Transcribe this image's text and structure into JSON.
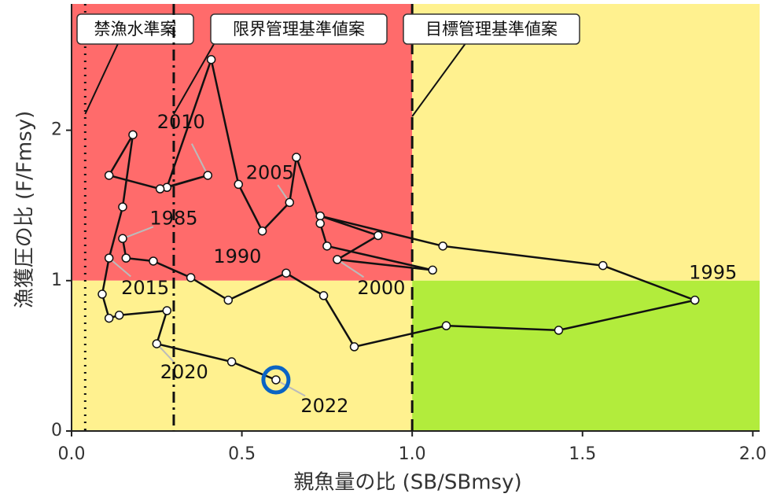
{
  "chart_data": {
    "type": "scatter",
    "x_label": "親魚量の比 (SB/SBmsy)",
    "y_label": "漁獲圧の比 (F/Fmsy)",
    "x": [
      0.15,
      0.16,
      0.24,
      0.35,
      0.46,
      0.63,
      0.74,
      0.83,
      1.1,
      1.43,
      1.83,
      1.56,
      1.09,
      0.73,
      0.9,
      0.78,
      1.06,
      0.75,
      0.73,
      0.66,
      0.64,
      0.56,
      0.49,
      0.41,
      0.28,
      0.4,
      0.26,
      0.11,
      0.18,
      0.15,
      0.11,
      0.09,
      0.11,
      0.14,
      0.28,
      0.25,
      0.47,
      0.6
    ],
    "values": [
      1.28,
      1.15,
      1.13,
      1.02,
      0.87,
      1.05,
      0.9,
      0.56,
      0.7,
      0.67,
      0.87,
      1.1,
      1.23,
      1.43,
      1.3,
      1.14,
      1.07,
      1.23,
      1.38,
      1.82,
      1.52,
      1.33,
      1.64,
      2.47,
      1.62,
      1.7,
      1.61,
      1.7,
      1.97,
      1.49,
      1.15,
      0.91,
      0.75,
      0.77,
      0.8,
      0.58,
      0.46,
      0.34
    ],
    "point_labels": [
      "1985",
      null,
      null,
      null,
      null,
      "1990",
      null,
      null,
      null,
      null,
      "1995",
      null,
      null,
      null,
      null,
      "2000",
      null,
      null,
      null,
      null,
      "2005",
      null,
      null,
      null,
      null,
      "2010",
      null,
      null,
      null,
      null,
      "2015",
      null,
      null,
      null,
      null,
      "2020",
      null,
      "2022"
    ],
    "color": "#111111",
    "xlim": [
      0,
      2.02
    ],
    "ylim": [
      0,
      2.84
    ],
    "xticks": [
      {
        "value": 0,
        "label": "0.0"
      },
      {
        "value": 0.5,
        "label": "0.5"
      },
      {
        "value": 1,
        "label": "1.0"
      },
      {
        "value": 1.5,
        "label": "1.5"
      },
      {
        "value": 2,
        "label": "2.0"
      }
    ],
    "yticks": [
      0,
      1,
      2
    ],
    "quadrant_split": [
      1,
      1
    ],
    "quadrant_colors": {
      "upper_left": "#ff6b6b",
      "upper_right": "#fff18f",
      "lower_left": "#fff18f",
      "lower_right": "#b2ec3c"
    },
    "reference_lines": [
      {
        "label": "禁漁水準案",
        "x": 0.04,
        "style": "dotted"
      },
      {
        "label": "限界管理基準値案",
        "x": 0.3,
        "style": "dashdot"
      },
      {
        "label": "目標管理基準値案",
        "x": 1.0,
        "style": "dashed"
      }
    ],
    "highlight_color": "#0a64c4"
  }
}
